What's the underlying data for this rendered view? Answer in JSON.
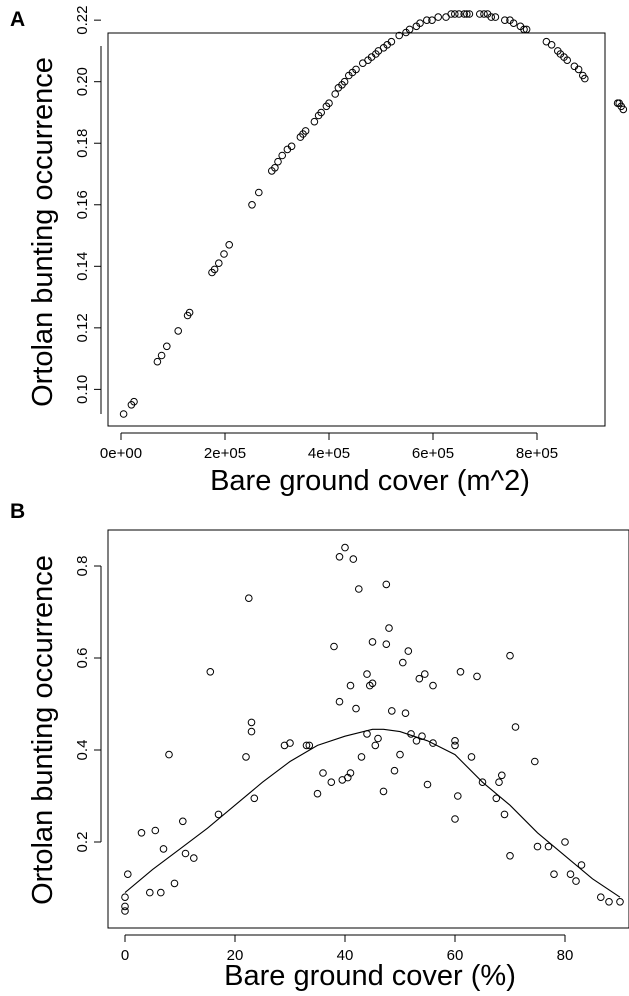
{
  "chart_data": [
    {
      "panel": "A",
      "type": "scatter",
      "xlabel": "Bare ground cover (m^2)",
      "ylabel": "Ortolan bunting occurrence",
      "xticks": [
        "0e+00",
        "2e+05",
        "4e+05",
        "6e+05",
        "8e+05"
      ],
      "yticks": [
        "0.10",
        "0.12",
        "0.14",
        "0.16",
        "0.18",
        "0.20",
        "0.22"
      ],
      "grid": false,
      "series": [
        {
          "x": [
            5000,
            20000,
            25000,
            70000,
            78000,
            88000,
            110000,
            128000,
            132000,
            175000,
            180000,
            188000,
            198000,
            208000,
            252000,
            265000,
            290000,
            296000,
            302000,
            310000,
            320000,
            328000,
            345000,
            350000,
            355000,
            372000,
            380000,
            385000,
            395000,
            400000,
            412000,
            418000,
            425000,
            430000,
            438000,
            445000,
            452000,
            465000,
            475000,
            482000,
            490000,
            495000,
            505000,
            512000,
            520000,
            535000,
            548000,
            555000,
            568000,
            575000,
            588000,
            598000,
            610000,
            625000,
            635000,
            642000,
            650000,
            660000,
            665000,
            670000,
            690000,
            698000,
            705000,
            712000,
            720000,
            738000,
            748000,
            755000,
            768000,
            775000,
            780000,
            818000,
            828000,
            840000,
            845000,
            852000,
            858000,
            872000,
            880000,
            888000,
            892000,
            955000,
            958000,
            962000,
            966000
          ],
          "y": [
            0.092,
            0.095,
            0.096,
            0.109,
            0.111,
            0.114,
            0.119,
            0.124,
            0.125,
            0.138,
            0.139,
            0.141,
            0.144,
            0.147,
            0.16,
            0.164,
            0.171,
            0.172,
            0.174,
            0.176,
            0.178,
            0.179,
            0.182,
            0.183,
            0.184,
            0.187,
            0.189,
            0.19,
            0.192,
            0.193,
            0.196,
            0.198,
            0.199,
            0.2,
            0.202,
            0.203,
            0.204,
            0.206,
            0.207,
            0.208,
            0.209,
            0.21,
            0.211,
            0.212,
            0.213,
            0.215,
            0.216,
            0.217,
            0.218,
            0.219,
            0.22,
            0.22,
            0.221,
            0.221,
            0.222,
            0.222,
            0.222,
            0.222,
            0.222,
            0.222,
            0.222,
            0.222,
            0.222,
            0.221,
            0.221,
            0.22,
            0.22,
            0.219,
            0.218,
            0.217,
            0.217,
            0.213,
            0.212,
            0.21,
            0.209,
            0.208,
            0.207,
            0.205,
            0.204,
            0.202,
            0.201,
            0.193,
            0.193,
            0.192,
            0.191
          ]
        }
      ]
    },
    {
      "panel": "B",
      "type": "scatter",
      "xlabel": "Bare ground cover (%)",
      "ylabel": "Ortolan bunting occurrence",
      "xticks": [
        "0",
        "20",
        "40",
        "60",
        "80"
      ],
      "yticks": [
        "0.2",
        "0.4",
        "0.6",
        "0.8"
      ],
      "grid": false,
      "series": [
        {
          "x": [
            0,
            0,
            0,
            0.5,
            3,
            4.5,
            5.5,
            6.5,
            7,
            8,
            9,
            10.5,
            11,
            12.5,
            15.5,
            17,
            22,
            22.5,
            23,
            23,
            23.5,
            29,
            30,
            33,
            33.5,
            35,
            36,
            37.5,
            38,
            39,
            39,
            39.5,
            40,
            40.5,
            41,
            41,
            41.5,
            42,
            42.5,
            43,
            44,
            44,
            44.5,
            45,
            45,
            45.5,
            46,
            47,
            47.5,
            47.5,
            48,
            48.5,
            49,
            50,
            50.5,
            51,
            51.5,
            52,
            53,
            53.5,
            54,
            54.5,
            55,
            56,
            56,
            60,
            60,
            60,
            60.5,
            61,
            63,
            64,
            65,
            67.5,
            68,
            68.5,
            69,
            70,
            70,
            71,
            74.5,
            75,
            77,
            78,
            80,
            81,
            82,
            83,
            86.5,
            88,
            90
          ],
          "y": [
            0.05,
            0.06,
            0.08,
            0.13,
            0.22,
            0.09,
            0.225,
            0.09,
            0.185,
            0.39,
            0.11,
            0.245,
            0.175,
            0.165,
            0.57,
            0.26,
            0.385,
            0.73,
            0.44,
            0.46,
            0.295,
            0.41,
            0.415,
            0.41,
            0.41,
            0.305,
            0.35,
            0.33,
            0.625,
            0.82,
            0.505,
            0.335,
            0.84,
            0.34,
            0.54,
            0.35,
            0.815,
            0.49,
            0.75,
            0.385,
            0.435,
            0.565,
            0.54,
            0.545,
            0.635,
            0.41,
            0.425,
            0.31,
            0.76,
            0.63,
            0.665,
            0.485,
            0.355,
            0.39,
            0.59,
            0.48,
            0.615,
            0.435,
            0.42,
            0.555,
            0.43,
            0.565,
            0.325,
            0.54,
            0.415,
            0.42,
            0.41,
            0.25,
            0.3,
            0.57,
            0.385,
            0.56,
            0.33,
            0.295,
            0.33,
            0.345,
            0.26,
            0.17,
            0.605,
            0.45,
            0.375,
            0.19,
            0.19,
            0.13,
            0.2,
            0.13,
            0.115,
            0.15,
            0.08,
            0.07,
            0.07
          ]
        }
      ],
      "fit_line": {
        "x": [
          0,
          5,
          10,
          15,
          20,
          25,
          30,
          35,
          40,
          45,
          47,
          50,
          55,
          60,
          65,
          70,
          75,
          80,
          85,
          90
        ],
        "y": [
          0.09,
          0.14,
          0.185,
          0.23,
          0.28,
          0.33,
          0.375,
          0.41,
          0.43,
          0.445,
          0.445,
          0.44,
          0.42,
          0.39,
          0.33,
          0.28,
          0.22,
          0.17,
          0.12,
          0.08
        ]
      }
    }
  ]
}
